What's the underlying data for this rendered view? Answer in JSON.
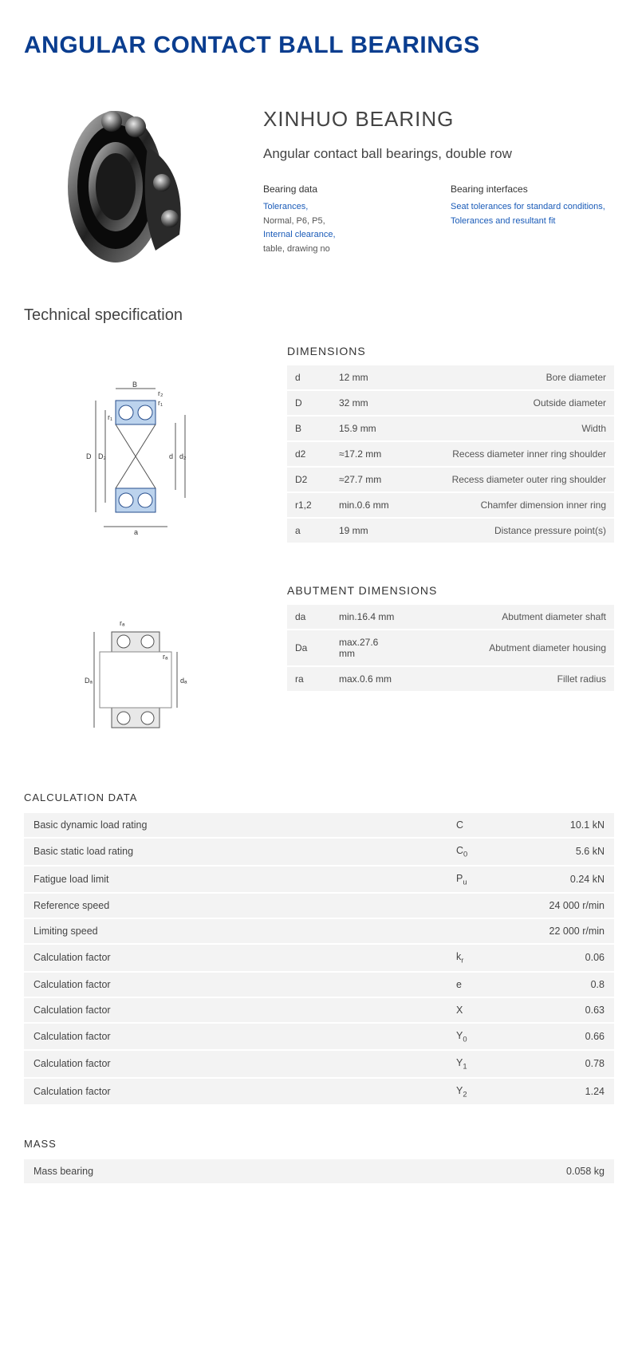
{
  "colors": {
    "title": "#0a3d8f",
    "link": "#1a5bb8",
    "row_bg": "#f3f3f3",
    "text": "#444444"
  },
  "title": "ANGULAR CONTACT BALL BEARINGS",
  "product": {
    "brand": "XINHUO BEARING",
    "subtitle": "Angular contact ball bearings, double row",
    "bearing_data": {
      "header": "Bearing data",
      "items": [
        {
          "text": "Tolerances,",
          "link": true
        },
        {
          "text": "Normal, P6, P5,",
          "link": false
        },
        {
          "text": "Internal clearance,",
          "link": true
        },
        {
          "text": "table, drawing no",
          "link": false
        }
      ]
    },
    "bearing_interfaces": {
      "header": "Bearing interfaces",
      "items": [
        {
          "text": "Seat tolerances for standard conditions,",
          "link": true
        },
        {
          "text": "Tolerances and resultant fit",
          "link": true
        }
      ]
    }
  },
  "tech_spec_title": "Technical specification",
  "dimensions": {
    "title": "DIMENSIONS",
    "rows": [
      {
        "sym": "d",
        "val": "12  mm",
        "desc": "Bore diameter"
      },
      {
        "sym": "D",
        "val": "32  mm",
        "desc": "Outside diameter"
      },
      {
        "sym": "B",
        "val": "15.9  mm",
        "desc": "Width"
      },
      {
        "sym": "d2",
        "val": "≈17.2 mm",
        "desc": "Recess diameter inner ring shoulder"
      },
      {
        "sym": "D2",
        "val": "≈27.7 mm",
        "desc": "Recess diameter outer ring shoulder"
      },
      {
        "sym": "r1,2",
        "val": "min.0.6 mm",
        "desc": "Chamfer dimension inner ring"
      },
      {
        "sym": "a",
        "val": "19  mm",
        "desc": "Distance pressure point(s)"
      }
    ]
  },
  "abutment": {
    "title": "ABUTMENT DIMENSIONS",
    "rows": [
      {
        "sym": "da",
        "val": "min.16.4 mm",
        "desc": "Abutment diameter shaft"
      },
      {
        "sym": "Da",
        "val": "max.27.6 mm",
        "desc": "Abutment diameter housing"
      },
      {
        "sym": "ra",
        "val": "max.0.6 mm",
        "desc": "Fillet radius"
      }
    ]
  },
  "calc": {
    "title": "CALCULATION DATA",
    "rows": [
      {
        "label": "Basic dynamic load rating",
        "symHtml": "C",
        "val": "10.1  kN"
      },
      {
        "label": "Basic static load rating",
        "symHtml": "C<sub>0</sub>",
        "val": "5.6  kN"
      },
      {
        "label": "Fatigue load limit",
        "symHtml": "P<sub>u</sub>",
        "val": "0.24  kN"
      },
      {
        "label": "Reference speed",
        "symHtml": "",
        "val": "24 000  r/min"
      },
      {
        "label": "Limiting speed",
        "symHtml": "",
        "val": "22 000  r/min"
      },
      {
        "label": "Calculation factor",
        "symHtml": "k<sub>r</sub>",
        "val": "0.06"
      },
      {
        "label": "Calculation factor",
        "symHtml": "e",
        "val": "0.8"
      },
      {
        "label": "Calculation factor",
        "symHtml": "X",
        "val": "0.63"
      },
      {
        "label": "Calculation factor",
        "symHtml": "Y<sub>0</sub>",
        "val": "0.66"
      },
      {
        "label": "Calculation factor",
        "symHtml": "Y<sub>1</sub>",
        "val": "0.78"
      },
      {
        "label": "Calculation factor",
        "symHtml": "Y<sub>2</sub>",
        "val": "1.24"
      }
    ]
  },
  "mass": {
    "title": "MASS",
    "rows": [
      {
        "label": "Mass bearing",
        "symHtml": "",
        "val": "0.058  kg"
      }
    ]
  },
  "diagram_labels": {
    "dim1": {
      "B": "B",
      "r2": "r₂",
      "r1": "r₁",
      "D": "D",
      "D2": "D₂",
      "d": "d",
      "d2": "d₂",
      "a": "a"
    },
    "dim2": {
      "ra": "rₐ",
      "Da": "Dₐ",
      "da": "dₐ"
    }
  }
}
